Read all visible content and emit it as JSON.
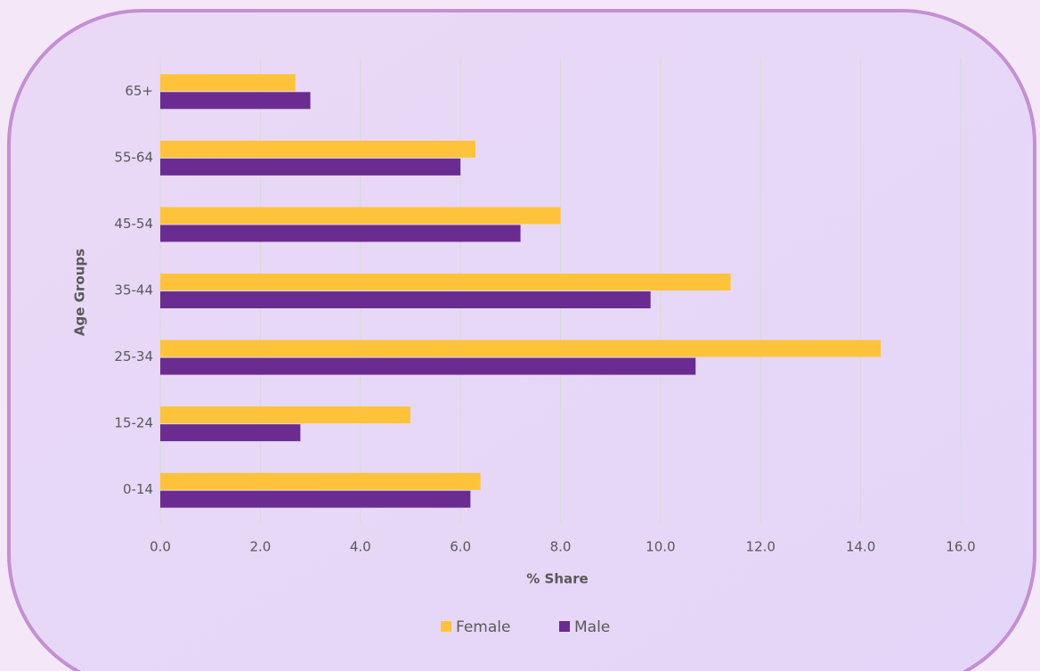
{
  "chart_data": {
    "type": "bar",
    "orientation": "horizontal",
    "categories": [
      "0-14",
      "15-24",
      "25-34",
      "35-44",
      "45-54",
      "55-64",
      "65+"
    ],
    "series": [
      {
        "name": "Female",
        "color": "#ffc33b",
        "values": [
          6.4,
          5.0,
          14.4,
          11.4,
          8.0,
          6.3,
          2.7
        ]
      },
      {
        "name": "Male",
        "color": "#6b2c91",
        "values": [
          6.2,
          2.8,
          10.7,
          9.8,
          7.2,
          6.0,
          3.0
        ]
      }
    ],
    "x_label": "% Share",
    "y_label": "Age Groups",
    "xlim": [
      0,
      16
    ],
    "xticks": [
      {
        "value": 0,
        "label": "0.0"
      },
      {
        "value": 2,
        "label": "2.0"
      },
      {
        "value": 4,
        "label": "4.0"
      },
      {
        "value": 6,
        "label": "6.0"
      },
      {
        "value": 8,
        "label": "8.0"
      },
      {
        "value": 10,
        "label": "10.0"
      },
      {
        "value": 12,
        "label": "12.0"
      },
      {
        "value": 14,
        "label": "14.0"
      },
      {
        "value": 16,
        "label": "16.0"
      }
    ],
    "grid": true,
    "legend": "bottom"
  }
}
